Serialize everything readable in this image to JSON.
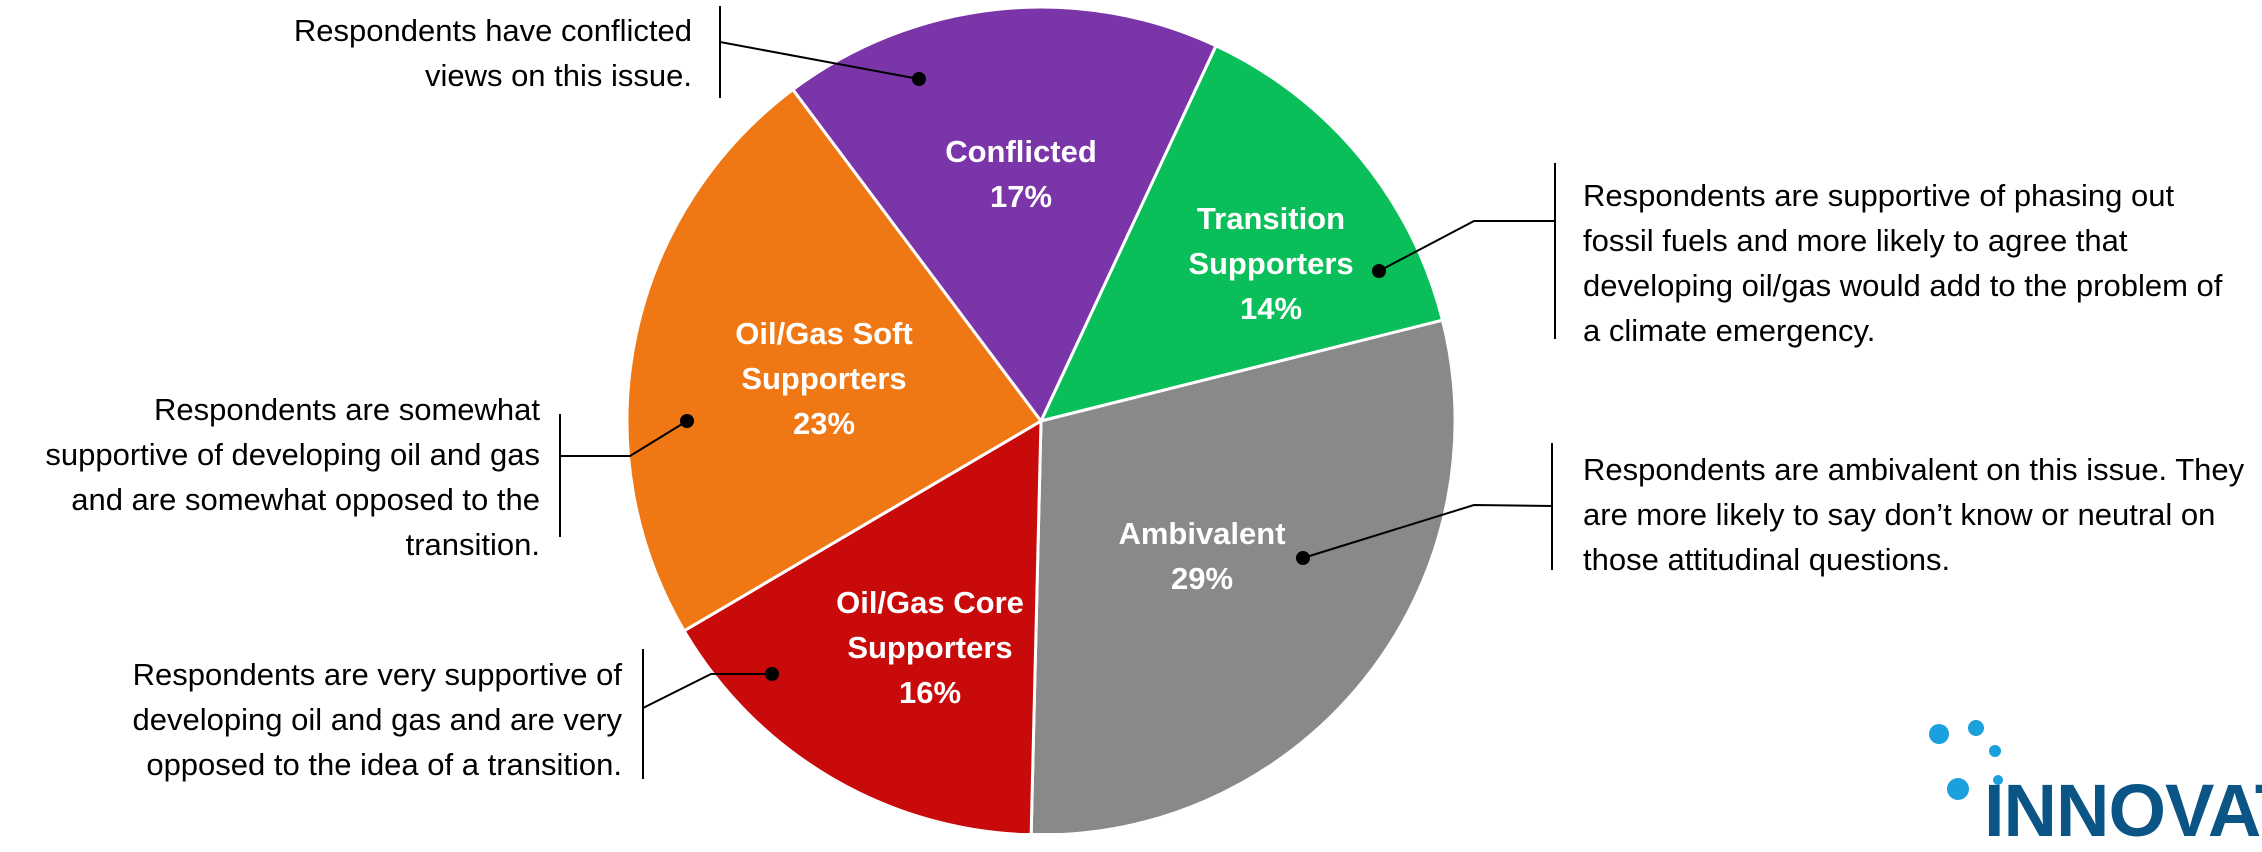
{
  "chart_data": {
    "type": "pie",
    "categories": [
      "Transition Supporters",
      "Ambivalent",
      "Oil/Gas Core Supporters",
      "Oil/Gas Soft Supporters",
      "Conflicted"
    ],
    "values": [
      14,
      29,
      16,
      23,
      17
    ],
    "value_labels": [
      "14%",
      "29%",
      "16%",
      "23%",
      "17%"
    ],
    "colors": [
      "#0abf5a",
      "#898989",
      "#c80a0a",
      "#f07814",
      "#7a35a8"
    ],
    "annotations": [
      "Respondents are supportive of phasing out fossil fuels and more likely to agree that developing oil/gas would add to the problem of a climate emergency.",
      "Respondents are ambivalent on this issue. They are more likely to say don’t know or neutral on those attitudinal questions.",
      "Respondents are very supportive of developing oil and gas and are very opposed to the idea of a transition.",
      "Respondents are somewhat supportive of developing oil and gas and are somewhat opposed to the transition.",
      "Respondents have conflicted views on this issue."
    ]
  },
  "logo": "INNOVATIV"
}
